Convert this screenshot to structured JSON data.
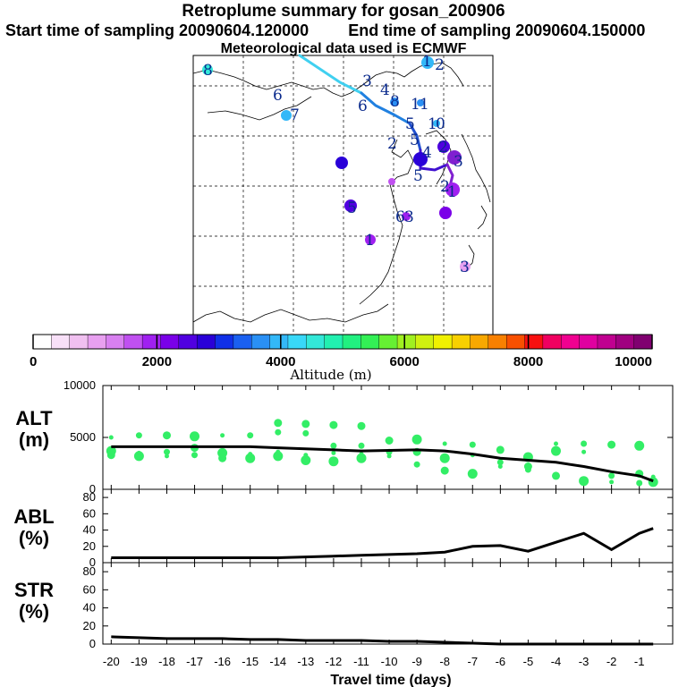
{
  "header": {
    "title": "Retroplume summary for gosan_200906",
    "start_label": "Start time of sampling 20090604.120000",
    "end_label": "End time of sampling 20090604.150000",
    "met_label": "Meteorological data used is ECMWF"
  },
  "colors": {
    "trajectory": [
      "#40d0f0",
      "#2080e0",
      "#2050d0",
      "#4010d0",
      "#8020d0"
    ],
    "alt_points": "#33ee66",
    "line": "#000000"
  },
  "map": {
    "labels": [
      "8",
      "6",
      "7",
      "3",
      "4",
      "8",
      "6",
      "1",
      "1",
      "5",
      "1",
      "0",
      "2",
      "5",
      "4",
      "5",
      "2",
      "3",
      "2",
      "1",
      "5",
      "6",
      "3",
      "1",
      "3",
      "1",
      "2"
    ]
  },
  "colorbar": {
    "title": "Altitude (m)",
    "ticks": [
      "0",
      "2000",
      "4000",
      "6000",
      "8000",
      "10000"
    ],
    "colors": [
      "#ffffff",
      "#f8e0f8",
      "#f0c0f0",
      "#e8a0f0",
      "#d880f0",
      "#c050f0",
      "#a020f0",
      "#7a00e8",
      "#5000e0",
      "#2a00d8",
      "#1030e8",
      "#1a60f0",
      "#2a90f5",
      "#33b8f8",
      "#38d8f8",
      "#33e8d8",
      "#22f0b0",
      "#22f080",
      "#33f055",
      "#66f033",
      "#a0f020",
      "#d0f010",
      "#f0f000",
      "#f8d000",
      "#f8a800",
      "#f88000",
      "#f85000",
      "#f81010",
      "#f00060",
      "#f00090",
      "#e000a0",
      "#c00090",
      "#a00080",
      "#800070"
    ]
  },
  "chart_data": [
    {
      "type": "scatter",
      "name": "ALT",
      "label_top": "ALT",
      "label_bottom": "(m)",
      "xlabel": "Travel time (days)",
      "xlim": [
        -20.3,
        0.2
      ],
      "ylim": [
        0,
        10000
      ],
      "yticks": [
        "10000",
        "5000",
        "0"
      ],
      "ytick_values": [
        10000,
        5000,
        0
      ],
      "line_x": [
        -20,
        -19,
        -18,
        -17,
        -16,
        -15,
        -14,
        -13,
        -12,
        -11,
        -10,
        -9,
        -8,
        -7,
        -6,
        -5,
        -4,
        -3,
        -2,
        -1,
        -0.5
      ],
      "line_y": [
        4100,
        4100,
        4100,
        4100,
        4100,
        4100,
        4000,
        3900,
        3800,
        3700,
        3750,
        3800,
        3700,
        3400,
        3000,
        2800,
        2600,
        2200,
        1700,
        1300,
        800
      ],
      "points": [
        {
          "x": -20,
          "y": 5000
        },
        {
          "x": -20,
          "y": 3700
        },
        {
          "x": -20,
          "y": 3300
        },
        {
          "x": -19,
          "y": 5200
        },
        {
          "x": -19,
          "y": 3500
        },
        {
          "x": -19,
          "y": 3200
        },
        {
          "x": -18,
          "y": 5200
        },
        {
          "x": -18,
          "y": 3600
        },
        {
          "x": -18,
          "y": 3200
        },
        {
          "x": -17,
          "y": 5100
        },
        {
          "x": -17,
          "y": 4000
        },
        {
          "x": -17,
          "y": 3300
        },
        {
          "x": -16,
          "y": 5200
        },
        {
          "x": -16,
          "y": 3500
        },
        {
          "x": -16,
          "y": 3000
        },
        {
          "x": -15,
          "y": 5200
        },
        {
          "x": -15,
          "y": 3400
        },
        {
          "x": -15,
          "y": 3000
        },
        {
          "x": -14,
          "y": 6400
        },
        {
          "x": -14,
          "y": 5500
        },
        {
          "x": -14,
          "y": 3600
        },
        {
          "x": -14,
          "y": 3200
        },
        {
          "x": -13,
          "y": 6300
        },
        {
          "x": -13,
          "y": 5400
        },
        {
          "x": -13,
          "y": 3300
        },
        {
          "x": -13,
          "y": 2800
        },
        {
          "x": -12,
          "y": 6200
        },
        {
          "x": -12,
          "y": 4200
        },
        {
          "x": -12,
          "y": 3500
        },
        {
          "x": -12,
          "y": 2700
        },
        {
          "x": -11,
          "y": 6100
        },
        {
          "x": -11,
          "y": 4200
        },
        {
          "x": -11,
          "y": 3400
        },
        {
          "x": -11,
          "y": 3000
        },
        {
          "x": -10,
          "y": 4700
        },
        {
          "x": -10,
          "y": 3600
        },
        {
          "x": -10,
          "y": 3200
        },
        {
          "x": -9,
          "y": 4800
        },
        {
          "x": -9,
          "y": 3600
        },
        {
          "x": -9,
          "y": 2400
        },
        {
          "x": -8,
          "y": 4400
        },
        {
          "x": -8,
          "y": 3000
        },
        {
          "x": -8,
          "y": 1800
        },
        {
          "x": -7,
          "y": 4300
        },
        {
          "x": -7,
          "y": 3300
        },
        {
          "x": -7,
          "y": 1500
        },
        {
          "x": -6,
          "y": 3800
        },
        {
          "x": -6,
          "y": 2600
        },
        {
          "x": -6,
          "y": 2200
        },
        {
          "x": -5,
          "y": 3100
        },
        {
          "x": -5,
          "y": 2200
        },
        {
          "x": -5,
          "y": 1900
        },
        {
          "x": -4,
          "y": 4400
        },
        {
          "x": -4,
          "y": 3700
        },
        {
          "x": -4,
          "y": 1300
        },
        {
          "x": -3,
          "y": 4400
        },
        {
          "x": -3,
          "y": 3600
        },
        {
          "x": -3,
          "y": 800
        },
        {
          "x": -2,
          "y": 4300
        },
        {
          "x": -2,
          "y": 1300
        },
        {
          "x": -2,
          "y": 700
        },
        {
          "x": -1,
          "y": 4200
        },
        {
          "x": -1,
          "y": 1500
        },
        {
          "x": -1,
          "y": 600
        },
        {
          "x": -0.5,
          "y": 1200
        },
        {
          "x": -0.5,
          "y": 700
        }
      ]
    },
    {
      "type": "line",
      "name": "ABL",
      "label_top": "ABL",
      "label_bottom": "(%)",
      "ylim": [
        0,
        90
      ],
      "yticks": [
        "80",
        "60",
        "40",
        "20",
        "0"
      ],
      "ytick_values": [
        80,
        60,
        40,
        20,
        0
      ],
      "x": [
        -20,
        -19,
        -18,
        -17,
        -16,
        -15,
        -14,
        -13,
        -12,
        -11,
        -10,
        -9,
        -8,
        -7,
        -6,
        -5,
        -4,
        -3,
        -2,
        -1,
        -0.5
      ],
      "y": [
        6,
        6,
        6,
        6,
        6,
        6,
        6,
        7,
        8,
        9,
        10,
        11,
        13,
        20,
        21,
        14,
        25,
        36,
        16,
        36,
        42
      ]
    },
    {
      "type": "line",
      "name": "STR",
      "label_top": "STR",
      "label_bottom": "(%)",
      "ylim": [
        0,
        90
      ],
      "yticks": [
        "80",
        "60",
        "40",
        "20",
        "0"
      ],
      "ytick_values": [
        80,
        60,
        40,
        20,
        0
      ],
      "x": [
        -20,
        -19,
        -18,
        -17,
        -16,
        -15,
        -14,
        -13,
        -12,
        -11,
        -10,
        -9,
        -8,
        -7,
        -6,
        -5,
        -4,
        -3,
        -2,
        -1,
        -0.5
      ],
      "y": [
        8,
        7,
        6,
        6,
        6,
        5,
        5,
        4,
        4,
        4,
        3,
        3,
        2,
        1,
        0,
        0,
        0,
        0,
        0,
        0,
        0
      ]
    }
  ],
  "xaxis": {
    "ticks": [
      "-20",
      "-19",
      "-18",
      "-17",
      "-16",
      "-15",
      "-14",
      "-13",
      "-12",
      "-11",
      "-10",
      "-9",
      "-8",
      "-7",
      "-6",
      "-5",
      "-4",
      "-3",
      "-2",
      "-1"
    ],
    "tick_values": [
      -20,
      -19,
      -18,
      -17,
      -16,
      -15,
      -14,
      -13,
      -12,
      -11,
      -10,
      -9,
      -8,
      -7,
      -6,
      -5,
      -4,
      -3,
      -2,
      -1
    ],
    "label": "Travel time (days)"
  }
}
